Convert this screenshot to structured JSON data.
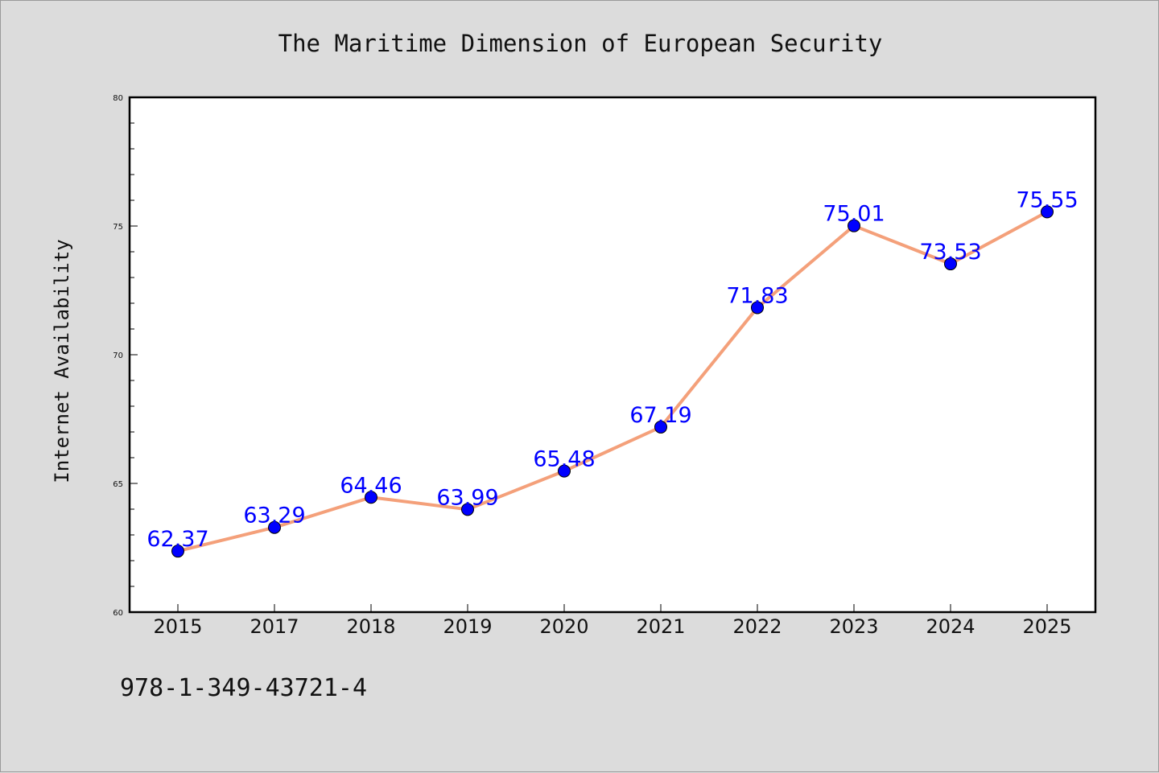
{
  "chart_data": {
    "type": "line",
    "title": "The Maritime Dimension of European Security",
    "xlabel": "",
    "ylabel": "Internet Availability",
    "categories": [
      "2015",
      "2017",
      "2018",
      "2019",
      "2020",
      "2021",
      "2022",
      "2023",
      "2024",
      "2025"
    ],
    "values": [
      62.37,
      63.29,
      64.46,
      63.99,
      65.48,
      67.19,
      71.83,
      75.01,
      73.53,
      75.55
    ],
    "data_labels": [
      "62.37",
      "63.29",
      "64.46",
      "63.99",
      "65.48",
      "67.19",
      "71.83",
      "75.01",
      "73.53",
      "75.55"
    ],
    "ylim": [
      60,
      80
    ],
    "yticks": [
      60,
      65,
      70,
      75,
      80
    ],
    "ytick_labels": [
      "60",
      "65",
      "70",
      "75",
      "80"
    ],
    "grid": false,
    "line_color": "#f4a07a",
    "marker_color": "#0000ff",
    "label_color": "#0000ff"
  },
  "footer": {
    "isbn": "978-1-349-43721-4"
  }
}
